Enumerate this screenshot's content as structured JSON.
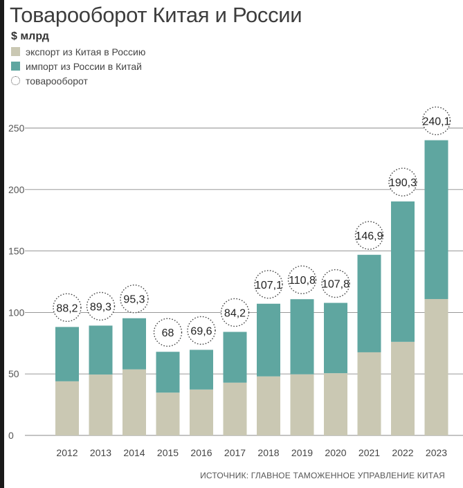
{
  "header": {
    "title": "Товарооборот Китая и России",
    "unit": "$ млрд"
  },
  "legend": {
    "export_label": "экспорт из Китая в Россию",
    "import_label": "импорт из России в Китай",
    "total_label": "товарооборот"
  },
  "colors": {
    "export": "#cac8b3",
    "import": "#5fa6a0",
    "grid": "#8a8a8a"
  },
  "source": "ИСТОЧНИК: ГЛАВНОЕ ТАМОЖЕННОЕ УПРАВЛЕНИЕ КИТАЯ",
  "chart_data": {
    "type": "bar",
    "stacked": true,
    "title": "Товарооборот Китая и России",
    "ylabel": "$ млрд",
    "xlabel": "",
    "ylim": [
      0,
      250
    ],
    "yticks": [
      0,
      50,
      100,
      150,
      200,
      250
    ],
    "grid": true,
    "categories": [
      "2012",
      "2013",
      "2014",
      "2015",
      "2016",
      "2017",
      "2018",
      "2019",
      "2020",
      "2021",
      "2022",
      "2023"
    ],
    "series": [
      {
        "name": "экспорт из Китая в Россию",
        "values": [
          44,
          49.5,
          53.7,
          34.8,
          37.3,
          42.9,
          48,
          49.7,
          50.6,
          67.6,
          76.1,
          110.9
        ]
      },
      {
        "name": "импорт из России в Китай",
        "values": [
          44.2,
          39.8,
          41.6,
          33.2,
          32.3,
          41.3,
          59.1,
          61.1,
          57.2,
          79.3,
          114.2,
          129.2
        ]
      }
    ],
    "totals": [
      88.2,
      89.3,
      95.3,
      68,
      69.6,
      84.2,
      107.1,
      110.8,
      107.8,
      146.9,
      190.3,
      240.1
    ],
    "total_labels": [
      "88,2",
      "89,3",
      "95,3",
      "68",
      "69,6",
      "84,2",
      "107,1",
      "110,8",
      "107,8",
      "146,9",
      "190,3",
      "240,1"
    ]
  }
}
